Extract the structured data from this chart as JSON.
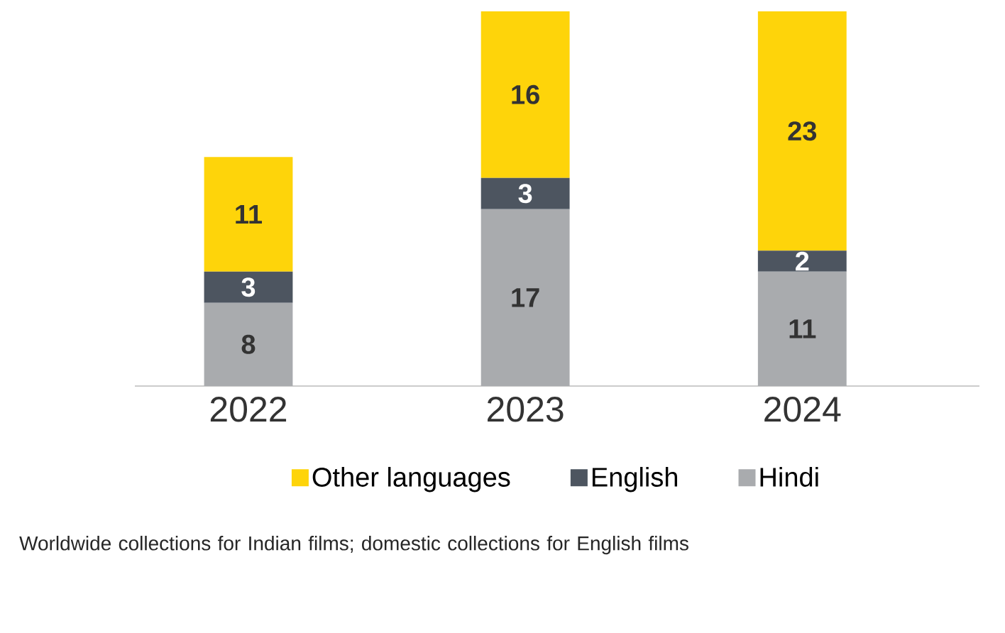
{
  "chart_data": {
    "type": "bar",
    "stacked": true,
    "data_labels": true,
    "legend": "bottom",
    "categories": [
      "2022",
      "2023",
      "2024"
    ],
    "series": [
      {
        "name": "Hindi",
        "color": "#a9abae",
        "values": [
          8,
          17,
          11
        ]
      },
      {
        "name": "English",
        "color": "#4d5560",
        "values": [
          3,
          3,
          2
        ]
      },
      {
        "name": "Other languages",
        "color": "#fed40a",
        "values": [
          11,
          16,
          23
        ]
      }
    ],
    "annotations": [
      "Worldwide collections for Indian films; domestic collections for English films"
    ]
  }
}
